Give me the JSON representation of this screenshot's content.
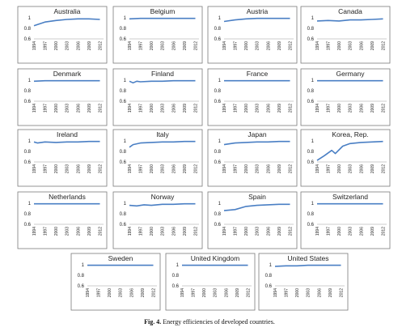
{
  "caption": {
    "number": "Fig. 4.",
    "text": "Energy efficiencies of developed countries."
  },
  "colors": {
    "series": "#4a7fc4",
    "frame": "#7a7a7a"
  },
  "chart_data": [
    {
      "type": "line",
      "title": "Australia",
      "ylim": [
        0.6,
        1
      ],
      "yticks": [
        "1",
        "0.8",
        "0.6"
      ],
      "x": [
        "1994",
        "1997",
        "2000",
        "2003",
        "2006",
        "2009",
        "2012"
      ],
      "values": [
        0.85,
        0.92,
        0.95,
        0.97,
        0.98,
        0.98,
        0.97
      ]
    },
    {
      "type": "line",
      "title": "Belgium",
      "ylim": [
        0.6,
        1
      ],
      "yticks": [
        "1",
        "0.8",
        "0.6"
      ],
      "x": [
        "1994",
        "1997",
        "2000",
        "2003",
        "2006",
        "2009",
        "2012"
      ],
      "values": [
        0.98,
        0.99,
        0.99,
        0.99,
        0.99,
        0.99,
        0.99
      ]
    },
    {
      "type": "line",
      "title": "Austria",
      "ylim": [
        0.6,
        1
      ],
      "yticks": [
        "1",
        "0.8",
        "0.6"
      ],
      "x": [
        "1994",
        "1997",
        "2000",
        "2003",
        "2006",
        "2009",
        "2012"
      ],
      "values": [
        0.93,
        0.96,
        0.98,
        0.99,
        0.99,
        0.99,
        0.99
      ]
    },
    {
      "type": "line",
      "title": "Canada",
      "ylim": [
        0.6,
        1
      ],
      "yticks": [
        "1",
        "0.8",
        "0.6"
      ],
      "x": [
        "1994",
        "1997",
        "2000",
        "2003",
        "2006",
        "2009",
        "2012"
      ],
      "values": [
        0.94,
        0.95,
        0.94,
        0.96,
        0.96,
        0.97,
        0.98
      ]
    },
    {
      "type": "line",
      "title": "Denmark",
      "ylim": [
        0.6,
        1
      ],
      "yticks": [
        "1",
        "0.8",
        "0.6"
      ],
      "x": [
        "1994",
        "1997",
        "2000",
        "2003",
        "2006",
        "2009",
        "2012"
      ],
      "values": [
        0.98,
        0.99,
        0.99,
        0.99,
        0.99,
        0.99,
        0.99
      ]
    },
    {
      "type": "line",
      "title": "Finland",
      "ylim": [
        0.6,
        1
      ],
      "yticks": [
        "1",
        "0.8",
        "0.6"
      ],
      "x": [
        "1994",
        "1995",
        "1996",
        "1997",
        "2000",
        "2003",
        "2006",
        "2009",
        "2012"
      ],
      "values": [
        0.98,
        0.95,
        0.98,
        0.97,
        0.98,
        0.98,
        0.99,
        0.99,
        0.99
      ]
    },
    {
      "type": "line",
      "title": "France",
      "ylim": [
        0.6,
        1
      ],
      "yticks": [
        "1",
        "0.8",
        "0.6"
      ],
      "x": [
        "1994",
        "1997",
        "2000",
        "2003",
        "2006",
        "2009",
        "2012"
      ],
      "values": [
        0.99,
        0.99,
        0.99,
        0.99,
        0.99,
        0.99,
        0.99
      ]
    },
    {
      "type": "line",
      "title": "Germany",
      "ylim": [
        0.6,
        1
      ],
      "yticks": [
        "1",
        "0.8",
        "0.6"
      ],
      "x": [
        "1994",
        "1997",
        "2000",
        "2003",
        "2006",
        "2009",
        "2012"
      ],
      "values": [
        0.99,
        0.99,
        0.99,
        0.99,
        0.99,
        0.99,
        0.99
      ]
    },
    {
      "type": "line",
      "title": "Ireland",
      "ylim": [
        0.6,
        1
      ],
      "yticks": [
        "1",
        "0.8",
        "0.6"
      ],
      "x": [
        "1994",
        "1995",
        "1997",
        "2000",
        "2003",
        "2006",
        "2009",
        "2012"
      ],
      "values": [
        0.98,
        0.96,
        0.98,
        0.97,
        0.98,
        0.98,
        0.99,
        0.99
      ]
    },
    {
      "type": "line",
      "title": "Italy",
      "ylim": [
        0.6,
        1
      ],
      "yticks": [
        "1",
        "0.8",
        "0.6"
      ],
      "x": [
        "1994",
        "1995",
        "1997",
        "2000",
        "2003",
        "2006",
        "2009",
        "2012"
      ],
      "values": [
        0.88,
        0.93,
        0.96,
        0.97,
        0.98,
        0.98,
        0.99,
        0.99
      ]
    },
    {
      "type": "line",
      "title": "Japan",
      "ylim": [
        0.6,
        1
      ],
      "yticks": [
        "1",
        "0.8",
        "0.6"
      ],
      "x": [
        "1994",
        "1997",
        "2000",
        "2003",
        "2006",
        "2009",
        "2012"
      ],
      "values": [
        0.93,
        0.96,
        0.97,
        0.98,
        0.98,
        0.99,
        0.99
      ]
    },
    {
      "type": "line",
      "title": "Korea, Rep.",
      "ylim": [
        0.6,
        1
      ],
      "yticks": [
        "1",
        "0.8",
        "0.6"
      ],
      "x": [
        "1994",
        "1996",
        "1998",
        "1999",
        "2001",
        "2003",
        "2006",
        "2009",
        "2012"
      ],
      "values": [
        0.63,
        0.72,
        0.82,
        0.76,
        0.9,
        0.95,
        0.97,
        0.98,
        0.99
      ]
    },
    {
      "type": "line",
      "title": "Netherlands",
      "ylim": [
        0.6,
        1
      ],
      "yticks": [
        "1",
        "0.8",
        "0.6"
      ],
      "x": [
        "1994",
        "1997",
        "2000",
        "2003",
        "2006",
        "2009",
        "2012"
      ],
      "values": [
        0.99,
        0.99,
        0.99,
        0.99,
        0.99,
        0.99,
        0.99
      ]
    },
    {
      "type": "line",
      "title": "Norway",
      "ylim": [
        0.6,
        1
      ],
      "yticks": [
        "1",
        "0.8",
        "0.6"
      ],
      "x": [
        "1994",
        "1996",
        "1998",
        "2000",
        "2003",
        "2006",
        "2009",
        "2012"
      ],
      "values": [
        0.96,
        0.95,
        0.97,
        0.96,
        0.98,
        0.98,
        0.99,
        0.99
      ]
    },
    {
      "type": "line",
      "title": "Spain",
      "ylim": [
        0.6,
        1
      ],
      "yticks": [
        "1",
        "0.8",
        "0.6"
      ],
      "x": [
        "1994",
        "1997",
        "2000",
        "2003",
        "2006",
        "2009",
        "2012"
      ],
      "values": [
        0.86,
        0.88,
        0.94,
        0.96,
        0.97,
        0.98,
        0.98
      ]
    },
    {
      "type": "line",
      "title": "Switzerland",
      "ylim": [
        0.6,
        1
      ],
      "yticks": [
        "1",
        "0.8",
        "0.6"
      ],
      "x": [
        "1994",
        "1997",
        "2000",
        "2003",
        "2006",
        "2009",
        "2012"
      ],
      "values": [
        0.99,
        0.99,
        0.99,
        0.99,
        0.99,
        0.99,
        0.99
      ]
    },
    {
      "type": "line",
      "title": "Sweden",
      "ylim": [
        0.6,
        1
      ],
      "yticks": [
        "1",
        "0.8",
        "0.6"
      ],
      "x": [
        "1994",
        "1997",
        "2000",
        "2003",
        "2006",
        "2009",
        "2012"
      ],
      "values": [
        0.99,
        0.99,
        0.99,
        0.99,
        0.99,
        0.99,
        0.99
      ]
    },
    {
      "type": "line",
      "title": "United Kingdom",
      "ylim": [
        0.6,
        1
      ],
      "yticks": [
        "1",
        "0.8",
        "0.6"
      ],
      "x": [
        "1994",
        "1997",
        "2000",
        "2003",
        "2006",
        "2009",
        "2012"
      ],
      "values": [
        0.99,
        0.99,
        0.99,
        0.99,
        0.99,
        0.99,
        0.99
      ]
    },
    {
      "type": "line",
      "title": "United States",
      "ylim": [
        0.6,
        1
      ],
      "yticks": [
        "1",
        "0.8",
        "0.6"
      ],
      "x": [
        "1994",
        "1997",
        "2000",
        "2003",
        "2006",
        "2009",
        "2012"
      ],
      "values": [
        0.97,
        0.98,
        0.98,
        0.99,
        0.99,
        0.99,
        0.99
      ]
    }
  ]
}
